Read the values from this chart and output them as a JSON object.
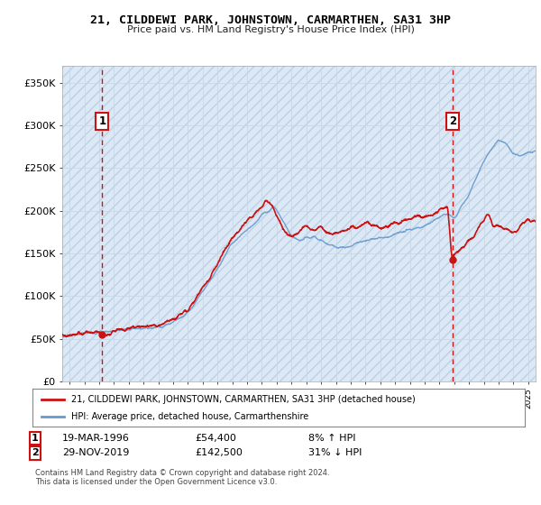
{
  "title": "21, CILDDEWI PARK, JOHNSTOWN, CARMARTHEN, SA31 3HP",
  "subtitle": "Price paid vs. HM Land Registry's House Price Index (HPI)",
  "background_color": "#ffffff",
  "plot_bg_color": "#dce8f5",
  "hatch_color": "#b8cfe0",
  "grid_color": "#aaaacc",
  "line1_color": "#cc1111",
  "line2_color": "#6699cc",
  "dashed_color": "#cc1111",
  "ylim": [
    0,
    370000
  ],
  "yticks": [
    0,
    50000,
    100000,
    150000,
    200000,
    250000,
    300000,
    350000
  ],
  "ytick_labels": [
    "£0",
    "£50K",
    "£100K",
    "£150K",
    "£200K",
    "£250K",
    "£300K",
    "£350K"
  ],
  "sale1_year": 1996.21,
  "sale1_price": 54400,
  "sale1_label": "1",
  "sale1_date": "19-MAR-1996",
  "sale1_amount": "£54,400",
  "sale1_hpi": "8% ↑ HPI",
  "sale2_year": 2019.91,
  "sale2_price": 142500,
  "sale2_label": "2",
  "sale2_date": "29-NOV-2019",
  "sale2_amount": "£142,500",
  "sale2_hpi": "31% ↓ HPI",
  "legend1": "21, CILDDEWI PARK, JOHNSTOWN, CARMARTHEN, SA31 3HP (detached house)",
  "legend2": "HPI: Average price, detached house, Carmarthenshire",
  "footer": "Contains HM Land Registry data © Crown copyright and database right 2024.\nThis data is licensed under the Open Government Licence v3.0.",
  "xmin": 1993.5,
  "xmax": 2025.5
}
